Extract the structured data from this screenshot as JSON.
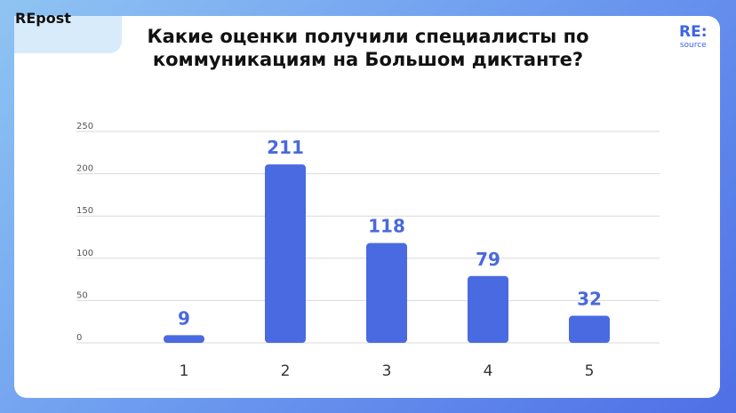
{
  "brand": {
    "repost_label": "REpost",
    "logo_main": "RE:",
    "logo_sub": "source"
  },
  "colors": {
    "bar": "#4a6ae2",
    "data_label": "#4a69dd",
    "logo": "#3f63e6"
  },
  "chart_data": {
    "type": "bar",
    "title_lines": [
      "Какие оценки получили специалисты по",
      "коммуникациям на Большом диктанте?"
    ],
    "categories": [
      "1",
      "2",
      "3",
      "4",
      "5"
    ],
    "values": [
      9,
      211,
      118,
      79,
      32
    ],
    "data_labels": [
      "9",
      "211",
      "118",
      "79",
      "32"
    ],
    "yticks": [
      "0",
      "50",
      "100",
      "150",
      "200",
      "250"
    ],
    "ylim": [
      0,
      250
    ],
    "grid": true,
    "legend": "none"
  }
}
